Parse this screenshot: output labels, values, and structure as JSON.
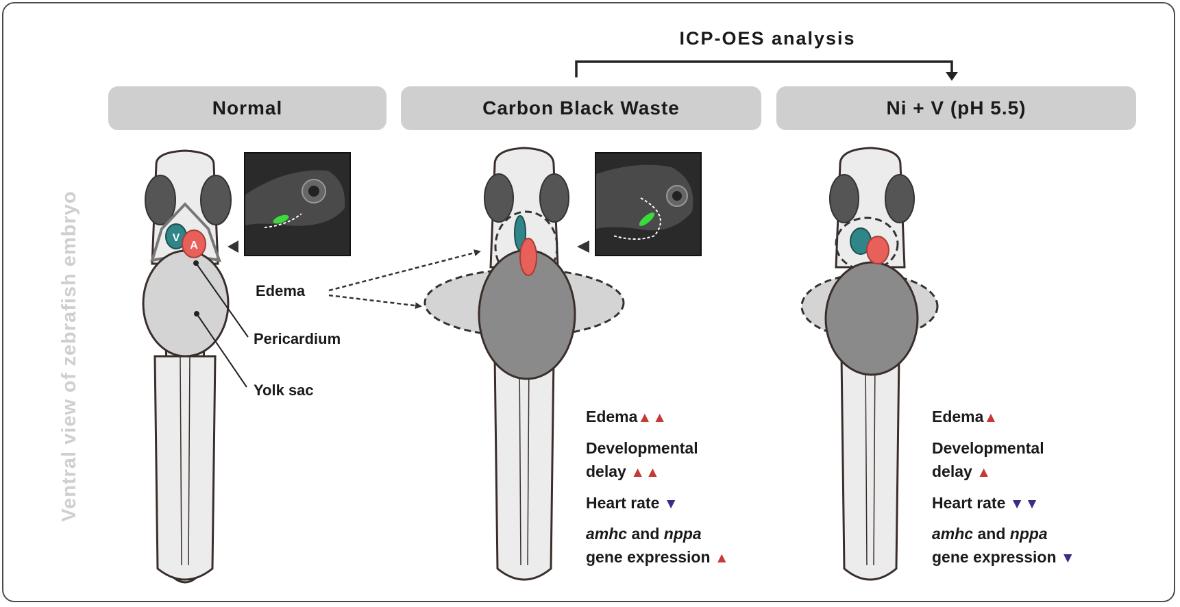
{
  "header": {
    "icp_title": "ICP-OES analysis"
  },
  "side_label": "Ventral view of zebrafish embryo",
  "panels": {
    "normal": {
      "title": "Normal",
      "labels": {
        "ventricle": "V",
        "atrium": "A",
        "edema": "Edema",
        "pericardium": "Pericardium",
        "yolk_sac": "Yolk sac"
      }
    },
    "carbon_black": {
      "title": "Carbon Black Waste",
      "effects": {
        "edema": {
          "label": "Edema",
          "arrows": "▲▲"
        },
        "dev_delay": {
          "line1": "Developmental",
          "line2": "delay",
          "arrows": "▲▲"
        },
        "heart_rate": {
          "label": "Heart rate",
          "arrows": "▼"
        },
        "genes": {
          "gene1": "amhc",
          "conj": "and",
          "gene2": "nppa",
          "line2": "gene expression",
          "arrows": "▲"
        }
      }
    },
    "ni_v": {
      "title": "Ni + V (pH 5.5)",
      "effects": {
        "edema": {
          "label": "Edema",
          "arrows": "▲"
        },
        "dev_delay": {
          "line1": "Developmental",
          "line2": "delay",
          "arrows": "▲"
        },
        "heart_rate": {
          "label": "Heart rate",
          "arrows": "▼▼"
        },
        "genes": {
          "gene1": "amhc",
          "conj": "and",
          "gene2": "nppa",
          "line2": "gene expression",
          "arrows": "▼"
        }
      }
    }
  },
  "colors": {
    "pill": "#cfcfcf",
    "ventricle": "#2f8587",
    "atrium": "#e8605a",
    "up_arrow": "#c43a36",
    "down_arrow": "#3f2b86",
    "eye": "#555555",
    "yolk_normal": "#d4d4d4",
    "yolk_treated": "#8a8a8a",
    "body": "#ececec",
    "fluorescence": "#3adb3a"
  }
}
